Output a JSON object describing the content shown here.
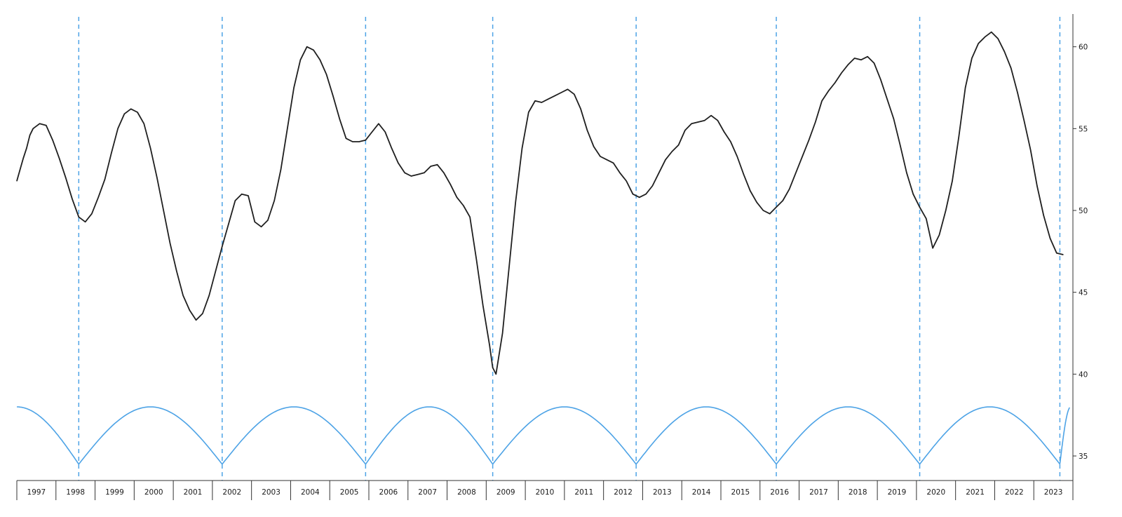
{
  "chart_data": {
    "type": "line",
    "title": "",
    "xlabel": "",
    "ylabel": "",
    "x_range": [
      "1997-01",
      "2023-12"
    ],
    "ylim": [
      33.5,
      62
    ],
    "y_ticks": [
      35,
      40,
      45,
      50,
      55,
      60
    ],
    "y_tick_labels": [
      "35",
      "40",
      "45",
      "50",
      "55",
      "60"
    ],
    "x_tick_labels": [
      "1997",
      "1998",
      "1999",
      "2000",
      "2001",
      "2002",
      "2003",
      "2004",
      "2005",
      "2006",
      "2007",
      "2008",
      "2009",
      "2010",
      "2011",
      "2012",
      "2013",
      "2014",
      "2015",
      "2016",
      "2017",
      "2018",
      "2019",
      "2020",
      "2021",
      "2022",
      "2023"
    ],
    "grid": false,
    "legend": "none",
    "vertical_markers": [
      "1998-08",
      "2002-04",
      "2005-12",
      "2009-03",
      "2012-11",
      "2016-06",
      "2020-02",
      "2023-09"
    ],
    "series": [
      {
        "color": "#1f1f1f",
        "points": [
          [
            "1997-01",
            51.8
          ],
          [
            "1997-02",
            52.5
          ],
          [
            "1997-03",
            53.2
          ],
          [
            "1997-04",
            53.8
          ],
          [
            "1997-05",
            54.6
          ],
          [
            "1997-06",
            55.0
          ],
          [
            "1997-08",
            55.3
          ],
          [
            "1997-10",
            55.2
          ],
          [
            "1997-12",
            54.3
          ],
          [
            "1998-02",
            53.2
          ],
          [
            "1998-04",
            52.0
          ],
          [
            "1998-06",
            50.7
          ],
          [
            "1998-08",
            49.6
          ],
          [
            "1998-10",
            49.3
          ],
          [
            "1998-12",
            49.8
          ],
          [
            "1999-02",
            50.8
          ],
          [
            "1999-04",
            51.9
          ],
          [
            "1999-06",
            53.5
          ],
          [
            "1999-08",
            55.0
          ],
          [
            "1999-10",
            55.9
          ],
          [
            "1999-12",
            56.2
          ],
          [
            "2000-02",
            56.0
          ],
          [
            "2000-04",
            55.3
          ],
          [
            "2000-06",
            53.8
          ],
          [
            "2000-08",
            52.0
          ],
          [
            "2000-10",
            50.0
          ],
          [
            "2000-12",
            48.0
          ],
          [
            "2001-02",
            46.3
          ],
          [
            "2001-04",
            44.8
          ],
          [
            "2001-06",
            43.9
          ],
          [
            "2001-08",
            43.3
          ],
          [
            "2001-10",
            43.7
          ],
          [
            "2001-12",
            44.8
          ],
          [
            "2002-02",
            46.3
          ],
          [
            "2002-04",
            47.8
          ],
          [
            "2002-06",
            49.2
          ],
          [
            "2002-08",
            50.6
          ],
          [
            "2002-10",
            51.0
          ],
          [
            "2002-12",
            50.9
          ],
          [
            "2003-02",
            49.3
          ],
          [
            "2003-04",
            49.0
          ],
          [
            "2003-06",
            49.4
          ],
          [
            "2003-08",
            50.6
          ],
          [
            "2003-10",
            52.5
          ],
          [
            "2003-12",
            55.0
          ],
          [
            "2004-02",
            57.5
          ],
          [
            "2004-04",
            59.2
          ],
          [
            "2004-06",
            60.0
          ],
          [
            "2004-08",
            59.8
          ],
          [
            "2004-10",
            59.2
          ],
          [
            "2004-12",
            58.3
          ],
          [
            "2005-02",
            57.0
          ],
          [
            "2005-04",
            55.6
          ],
          [
            "2005-06",
            54.4
          ],
          [
            "2005-08",
            54.2
          ],
          [
            "2005-10",
            54.2
          ],
          [
            "2005-12",
            54.3
          ],
          [
            "2006-02",
            54.8
          ],
          [
            "2006-04",
            55.3
          ],
          [
            "2006-06",
            54.8
          ],
          [
            "2006-08",
            53.8
          ],
          [
            "2006-10",
            52.9
          ],
          [
            "2006-12",
            52.3
          ],
          [
            "2007-02",
            52.1
          ],
          [
            "2007-04",
            52.2
          ],
          [
            "2007-06",
            52.3
          ],
          [
            "2007-08",
            52.7
          ],
          [
            "2007-10",
            52.8
          ],
          [
            "2007-12",
            52.3
          ],
          [
            "2008-02",
            51.6
          ],
          [
            "2008-04",
            50.8
          ],
          [
            "2008-06",
            50.3
          ],
          [
            "2008-08",
            49.6
          ],
          [
            "2008-10",
            47.0
          ],
          [
            "2008-12",
            44.2
          ],
          [
            "2009-02",
            41.8
          ],
          [
            "2009-03",
            40.4
          ],
          [
            "2009-04",
            40.0
          ],
          [
            "2009-06",
            42.5
          ],
          [
            "2009-08",
            46.5
          ],
          [
            "2009-10",
            50.5
          ],
          [
            "2009-12",
            53.8
          ],
          [
            "2010-02",
            56.0
          ],
          [
            "2010-04",
            56.7
          ],
          [
            "2010-06",
            56.6
          ],
          [
            "2010-08",
            56.8
          ],
          [
            "2010-10",
            57.0
          ],
          [
            "2010-12",
            57.2
          ],
          [
            "2011-02",
            57.4
          ],
          [
            "2011-04",
            57.1
          ],
          [
            "2011-06",
            56.2
          ],
          [
            "2011-08",
            54.9
          ],
          [
            "2011-10",
            53.9
          ],
          [
            "2011-12",
            53.3
          ],
          [
            "2012-02",
            53.1
          ],
          [
            "2012-04",
            52.9
          ],
          [
            "2012-06",
            52.3
          ],
          [
            "2012-08",
            51.8
          ],
          [
            "2012-10",
            51.0
          ],
          [
            "2012-12",
            50.8
          ],
          [
            "2013-02",
            51.0
          ],
          [
            "2013-04",
            51.5
          ],
          [
            "2013-06",
            52.3
          ],
          [
            "2013-08",
            53.1
          ],
          [
            "2013-10",
            53.6
          ],
          [
            "2013-12",
            54.0
          ],
          [
            "2014-02",
            54.9
          ],
          [
            "2014-04",
            55.3
          ],
          [
            "2014-06",
            55.4
          ],
          [
            "2014-08",
            55.5
          ],
          [
            "2014-10",
            55.8
          ],
          [
            "2014-12",
            55.5
          ],
          [
            "2015-02",
            54.8
          ],
          [
            "2015-04",
            54.2
          ],
          [
            "2015-06",
            53.3
          ],
          [
            "2015-08",
            52.2
          ],
          [
            "2015-10",
            51.2
          ],
          [
            "2015-12",
            50.5
          ],
          [
            "2016-02",
            50.0
          ],
          [
            "2016-04",
            49.8
          ],
          [
            "2016-06",
            50.2
          ],
          [
            "2016-08",
            50.6
          ],
          [
            "2016-10",
            51.3
          ],
          [
            "2016-12",
            52.3
          ],
          [
            "2017-02",
            53.3
          ],
          [
            "2017-04",
            54.3
          ],
          [
            "2017-06",
            55.4
          ],
          [
            "2017-08",
            56.7
          ],
          [
            "2017-10",
            57.3
          ],
          [
            "2017-12",
            57.8
          ],
          [
            "2018-02",
            58.4
          ],
          [
            "2018-04",
            58.9
          ],
          [
            "2018-06",
            59.3
          ],
          [
            "2018-08",
            59.2
          ],
          [
            "2018-10",
            59.4
          ],
          [
            "2018-12",
            59.0
          ],
          [
            "2019-02",
            58.0
          ],
          [
            "2019-04",
            56.8
          ],
          [
            "2019-06",
            55.6
          ],
          [
            "2019-08",
            54.0
          ],
          [
            "2019-10",
            52.3
          ],
          [
            "2019-12",
            51.0
          ],
          [
            "2020-02",
            50.2
          ],
          [
            "2020-04",
            49.5
          ],
          [
            "2020-06",
            47.7
          ],
          [
            "2020-08",
            48.5
          ],
          [
            "2020-10",
            50.0
          ],
          [
            "2020-12",
            51.8
          ],
          [
            "2021-02",
            54.5
          ],
          [
            "2021-04",
            57.5
          ],
          [
            "2021-06",
            59.3
          ],
          [
            "2021-08",
            60.2
          ],
          [
            "2021-10",
            60.6
          ],
          [
            "2021-12",
            60.9
          ],
          [
            "2022-02",
            60.5
          ],
          [
            "2022-04",
            59.7
          ],
          [
            "2022-06",
            58.7
          ],
          [
            "2022-08",
            57.2
          ],
          [
            "2022-10",
            55.5
          ],
          [
            "2022-12",
            53.7
          ],
          [
            "2023-02",
            51.5
          ],
          [
            "2023-04",
            49.7
          ],
          [
            "2023-06",
            48.3
          ],
          [
            "2023-08",
            47.4
          ],
          [
            "2023-10",
            47.3
          ]
        ]
      },
      {
        "color": "#4da3e6",
        "points": []
      }
    ],
    "cycle_curve": {
      "color": "#4da3e6",
      "min": 34.5,
      "peak": 38.0,
      "anchors": [
        "1997-01",
        "1998-08",
        "2002-04",
        "2005-12",
        "2009-03",
        "2012-11",
        "2016-06",
        "2020-02",
        "2023-09",
        "2023-12"
      ]
    }
  }
}
